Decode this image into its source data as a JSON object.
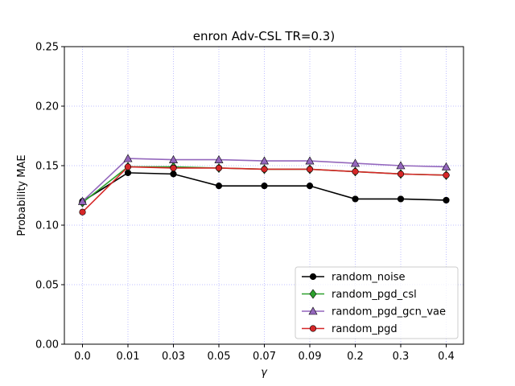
{
  "chart_data": {
    "type": "line",
    "title": "enron Adv-CSL TR=0.3)",
    "xlabel": "γ",
    "ylabel": "Probability MAE",
    "categories": [
      "0.0",
      "0.01",
      "0.03",
      "0.05",
      "0.07",
      "0.09",
      "0.2",
      "0.3",
      "0.4"
    ],
    "ylim": [
      0.0,
      0.25
    ],
    "yticks": [
      "0.00",
      "0.05",
      "0.10",
      "0.15",
      "0.20",
      "0.25"
    ],
    "grid": true,
    "legend_position": "lower-right",
    "series": [
      {
        "name": "random_noise",
        "color": "#000000",
        "marker": "circle",
        "values": [
          0.12,
          0.144,
          0.143,
          0.133,
          0.133,
          0.133,
          0.122,
          0.122,
          0.121
        ]
      },
      {
        "name": "random_pgd_csl",
        "color": "#2ca02c",
        "marker": "diamond",
        "values": [
          0.119,
          0.149,
          0.149,
          0.148,
          0.147,
          0.147,
          0.145,
          0.143,
          0.142
        ]
      },
      {
        "name": "random_pgd_gcn_vae",
        "color": "#9467bd",
        "marker": "triangle",
        "values": [
          0.12,
          0.156,
          0.155,
          0.155,
          0.154,
          0.154,
          0.152,
          0.15,
          0.149
        ]
      },
      {
        "name": "random_pgd",
        "color": "#d62728",
        "marker": "circle",
        "values": [
          0.111,
          0.149,
          0.148,
          0.148,
          0.147,
          0.147,
          0.145,
          0.143,
          0.142
        ]
      }
    ]
  }
}
